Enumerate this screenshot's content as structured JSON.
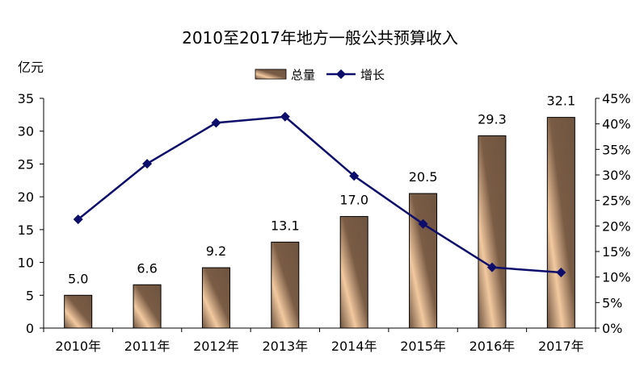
{
  "chart_data": {
    "type": "bar",
    "title": "2010至2017年地方一般公共预算收入",
    "ylabel": "亿元",
    "categories": [
      "2010年",
      "2011年",
      "2012年",
      "2013年",
      "2014年",
      "2015年",
      "2016年",
      "2017年"
    ],
    "series": [
      {
        "name": "总量",
        "type": "bar",
        "axis": "left",
        "values": [
          5.0,
          6.6,
          9.2,
          13.1,
          17.0,
          20.5,
          29.3,
          32.1
        ],
        "labels": [
          "5.0",
          "6.6",
          "9.2",
          "13.1",
          "17.0",
          "20.5",
          "29.3",
          "32.1"
        ],
        "color": "#7a5c45"
      },
      {
        "name": "增长",
        "type": "line",
        "axis": "right",
        "unit": "%",
        "values": [
          21.3,
          32.2,
          40.2,
          41.4,
          29.8,
          20.4,
          11.9,
          10.9
        ],
        "color": "#0d0d6b"
      }
    ],
    "ylim": [
      0,
      35
    ],
    "yticks": [
      "0",
      "5",
      "10",
      "15",
      "20",
      "25",
      "30",
      "35"
    ],
    "y2lim": [
      0,
      45
    ],
    "y2ticks": [
      "0%",
      "5%",
      "10%",
      "15%",
      "20%",
      "25%",
      "30%",
      "35%",
      "40%",
      "45%"
    ],
    "legend": "top-center",
    "grid": false
  }
}
